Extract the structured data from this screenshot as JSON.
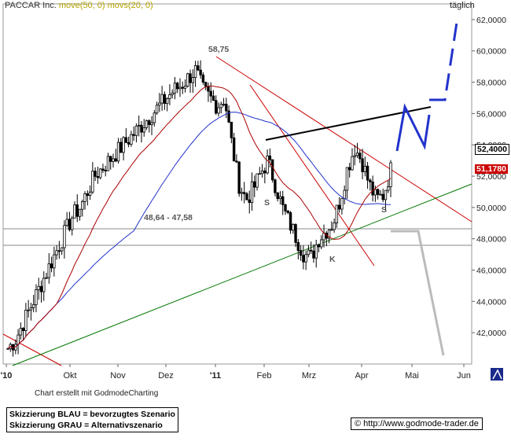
{
  "header": {
    "title": "PACCAR Inc.",
    "ma_long": "move(50, 0)",
    "ma_short": "movs(20, 0)",
    "period": "täglich"
  },
  "footer": {
    "credit": "Chart erstellt mit GodmodeCharting",
    "legend_blue": "Skizzierung BLAU = bevorzugtes Szenario",
    "legend_grey": "Skizzierung GRAU = Alternativszenario",
    "url": "© http://www.godmode-trader.de"
  },
  "colors": {
    "candle": "#000000",
    "ma50": "#2233cc",
    "ma20": "#aa0000",
    "resistance": "#cc0000",
    "support": "#007700",
    "neckline": "#000000",
    "scenario_blue": "#2233cc",
    "scenario_grey": "#bbbbbb",
    "tag_last": "#ffffff",
    "tag_ma": "#cc0000"
  },
  "chart_data": {
    "type": "candlestick",
    "x_tick_labels": [
      "'10",
      "Okt",
      "Nov",
      "Dez",
      "'11",
      "Feb",
      "Mrz",
      "Apr",
      "Mai",
      "Jun"
    ],
    "y_ticks": [
      "62,0000",
      "60,0000",
      "58,0000",
      "56,0000",
      "54,0000",
      "52,0000",
      "50,0000",
      "48,0000",
      "46,0000",
      "44,0000",
      "42,0000"
    ],
    "ylim": [
      40.0,
      63.0
    ],
    "price_tags": {
      "last": "52,4000",
      "moving_average": "51,1780"
    },
    "annotations": {
      "high": "58,75",
      "zone": "48,64 - 47,58",
      "left_shoulder": "S",
      "right_shoulder": "S",
      "head": "K"
    },
    "support_zone": [
      48.64,
      47.58
    ],
    "closes_approx": [
      41.0,
      41.5,
      42.5,
      43.5,
      44.5,
      45.5,
      46.5,
      47.5,
      48.5,
      49.5,
      50.0,
      51.0,
      52.0,
      52.5,
      53.0,
      53.5,
      54.0,
      54.5,
      55.0,
      55.5,
      56.0,
      56.5,
      57.0,
      57.5,
      57.8,
      58.3,
      58.75,
      57.5,
      57.0,
      56.5,
      57.0,
      54.0,
      51.5,
      50.5,
      51.2,
      52.2,
      53.0,
      51.5,
      50.0,
      49.0,
      48.0,
      47.0,
      46.8,
      48.0,
      48.5,
      49.0,
      50.5,
      52.5,
      53.8,
      53.0,
      51.5,
      50.5,
      50.8,
      52.4
    ]
  }
}
